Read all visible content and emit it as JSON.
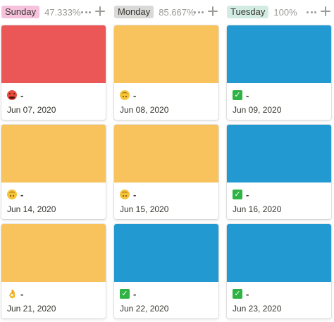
{
  "columns": [
    {
      "tag": "Sunday",
      "tag_color": "#f5c1dc",
      "percent": "47.333%",
      "cards": [
        {
          "emoji": "angry-face-icon",
          "title": "-",
          "date": "Jun 07, 2020",
          "cover": "#eb5757"
        },
        {
          "emoji": "upside-down-face-icon",
          "title": "-",
          "date": "Jun 14, 2020",
          "cover": "#f8c25c"
        },
        {
          "emoji": "ok-hand-icon",
          "title": "-",
          "date": "Jun 21, 2020",
          "cover": "#f8c25c"
        }
      ]
    },
    {
      "tag": "Monday",
      "tag_color": "#d9d9d7",
      "percent": "85.667%",
      "cards": [
        {
          "emoji": "upside-down-face-icon",
          "title": "-",
          "date": "Jun 08, 2020",
          "cover": "#f8c25c"
        },
        {
          "emoji": "upside-down-face-icon",
          "title": "-",
          "date": "Jun 15, 2020",
          "cover": "#f8c25c"
        },
        {
          "emoji": "check-mark-icon",
          "title": "-",
          "date": "Jun 22, 2020",
          "cover": "#2299d0"
        }
      ]
    },
    {
      "tag": "Tuesday",
      "tag_color": "#d3ece3",
      "percent": "100%",
      "cards": [
        {
          "emoji": "check-mark-icon",
          "title": "-",
          "date": "Jun 09, 2020",
          "cover": "#2299d0"
        },
        {
          "emoji": "check-mark-icon",
          "title": "-",
          "date": "Jun 16, 2020",
          "cover": "#2299d0"
        },
        {
          "emoji": "check-mark-icon",
          "title": "-",
          "date": "Jun 23, 2020",
          "cover": "#2299d0"
        }
      ]
    }
  ]
}
